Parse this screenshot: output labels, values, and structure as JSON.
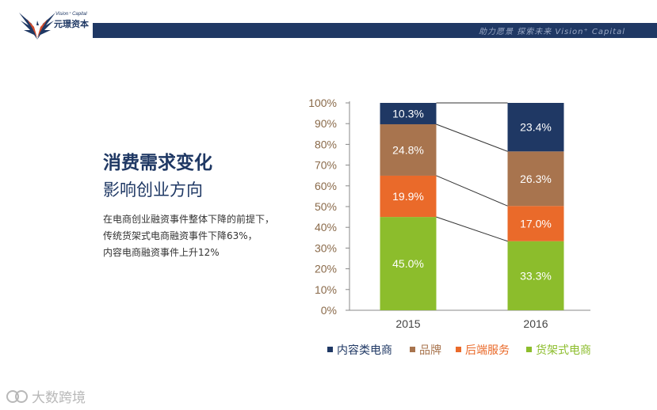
{
  "header": {
    "slogan": "助力愿景 探索未来 Vision⁺ Capital",
    "logo_en": "Vision⁺ Capital",
    "logo_cn": "元璟资本"
  },
  "text": {
    "title": "消费需求变化",
    "subtitle": "影响创业方向",
    "lines": [
      "在电商创业融资事件整体下降的前提下，",
      "传统货架式电商融资事件下降63%，",
      "内容电商融资事件上升12%"
    ]
  },
  "watermark": "大数跨境",
  "chart_data": {
    "type": "bar",
    "stacked": true,
    "categories": [
      "2015",
      "2016"
    ],
    "series": [
      {
        "name": "货架式电商",
        "values": [
          45.0,
          33.3
        ],
        "labels": [
          "45.0%",
          "33.3%"
        ],
        "color": "#8cbd2c",
        "label_color": "#ffffff"
      },
      {
        "name": "后端服务",
        "values": [
          19.9,
          17.0
        ],
        "labels": [
          "19.9%",
          "17.0%"
        ],
        "color": "#ea6a2a",
        "label_color": "#ffffff"
      },
      {
        "name": "品牌",
        "values": [
          24.8,
          26.3
        ],
        "labels": [
          "24.8%",
          "26.3%"
        ],
        "color": "#a8744e",
        "label_color": "#ffffff"
      },
      {
        "name": "内容类电商",
        "values": [
          10.3,
          23.4
        ],
        "labels": [
          "10.3%",
          "23.4%"
        ],
        "color": "#1f3864",
        "label_color": "#ffffff"
      }
    ],
    "legend_order": [
      "内容类电商",
      "品牌",
      "后端服务",
      "货架式电商"
    ],
    "yticks": [
      "0%",
      "10%",
      "20%",
      "30%",
      "40%",
      "50%",
      "60%",
      "70%",
      "80%",
      "90%",
      "100%"
    ],
    "ylim": [
      0,
      100
    ],
    "tick_color": "#8a6a4a",
    "legend_position": "bottom"
  }
}
